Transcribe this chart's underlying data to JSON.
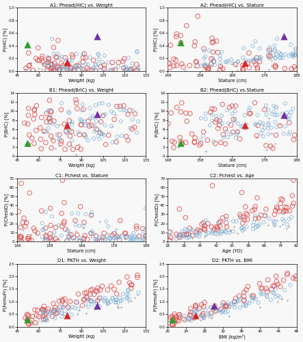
{
  "panels": [
    {
      "title": "A1: Phead(HIC) vs. Weight",
      "xlabel": "Weight (kg)",
      "ylabel": "P(HIC) [%]",
      "xlim": [
        45,
        135
      ],
      "ylim": [
        0,
        1
      ],
      "xticks": [
        45,
        60,
        75,
        90,
        105,
        120,
        135
      ],
      "yticks": [
        0,
        0.2,
        0.4,
        0.6,
        0.8,
        1
      ]
    },
    {
      "title": "A2: Phead(HIC) vs. Stature",
      "xlabel": "Stature (cm)",
      "ylabel": "P(HIC) [%]",
      "xlim": [
        148,
        188
      ],
      "ylim": [
        0,
        1
      ],
      "xticks": [
        148,
        158,
        168,
        178,
        188
      ],
      "yticks": [
        0,
        0.2,
        0.4,
        0.6,
        0.8,
        1
      ]
    },
    {
      "title": "B1: Phead(BrIC) vs. Weight",
      "xlabel": "Weight (kg)",
      "ylabel": "P(BrIC) [%]",
      "xlim": [
        45,
        135
      ],
      "ylim": [
        0,
        14
      ],
      "xticks": [
        45,
        60,
        75,
        90,
        105,
        120,
        135
      ],
      "yticks": [
        0,
        2,
        4,
        6,
        8,
        10,
        12,
        14
      ]
    },
    {
      "title": "B2: Phead(BrIC) vs.Stature",
      "xlabel": "Stature (cm)",
      "ylabel": "P(BrIC) [%]",
      "xlim": [
        148,
        188
      ],
      "ylim": [
        0,
        14
      ],
      "xticks": [
        148,
        158,
        168,
        178,
        188
      ],
      "yticks": [
        0,
        2,
        4,
        6,
        8,
        10,
        12,
        14
      ]
    },
    {
      "title": "C1: Pchest vs. Stature",
      "xlabel": "Stature (cm)",
      "ylabel": "P(ChestD) [%]",
      "xlim": [
        148,
        188
      ],
      "ylim": [
        0,
        70
      ],
      "xticks": [
        148,
        158,
        168,
        178,
        188
      ],
      "yticks": [
        0,
        10,
        20,
        30,
        40,
        50,
        60,
        70
      ]
    },
    {
      "title": "C2: Pchest vs. Age",
      "xlabel": "Age (YO)",
      "ylabel": "P(ChestD) [%]",
      "xlim": [
        18,
        82
      ],
      "ylim": [
        0,
        70
      ],
      "xticks": [
        18,
        26,
        34,
        42,
        50,
        58,
        66,
        74,
        82
      ],
      "yticks": [
        0,
        10,
        20,
        30,
        40,
        50,
        60,
        70
      ]
    },
    {
      "title": "D1: PKTH vs. Weight",
      "xlabel": "Weight (kg)",
      "ylabel": "P(FemuFr) [%]",
      "xlim": [
        45,
        135
      ],
      "ylim": [
        0,
        2.5
      ],
      "xticks": [
        45,
        60,
        75,
        90,
        105,
        120,
        135
      ],
      "yticks": [
        0,
        0.5,
        1,
        1.5,
        2,
        2.5
      ]
    },
    {
      "title": "D2: PKTH vs. BMI",
      "xlabel": "BMI (kg/m²)",
      "ylabel": "P(FemuFr) [%]",
      "xlim": [
        20,
        48
      ],
      "ylim": [
        0,
        2.5
      ],
      "xticks": [
        20,
        24,
        28,
        32,
        36,
        40,
        44,
        48
      ],
      "yticks": [
        0,
        0.5,
        1,
        1.5,
        2,
        2.5
      ]
    }
  ],
  "atd_points": {
    "0": {
      "sf": [
        52,
        0.42
      ],
      "mm": [
        80,
        0.14
      ],
      "lm": [
        101,
        0.55
      ]
    },
    "1": {
      "sf": [
        152,
        0.45
      ],
      "mm": [
        172,
        0.13
      ],
      "lm": [
        184,
        0.55
      ]
    },
    "2": {
      "sf": [
        52,
        3.0
      ],
      "mm": [
        80,
        6.8
      ],
      "lm": [
        101,
        9.3
      ]
    },
    "3": {
      "sf": [
        152,
        3.0
      ],
      "mm": [
        172,
        6.8
      ],
      "lm": [
        184,
        9.2
      ]
    },
    "4": null,
    "5": null,
    "6": {
      "sf": [
        52,
        0.28
      ],
      "mm": [
        80,
        0.45
      ],
      "lm": [
        101,
        0.83
      ]
    },
    "7": {
      "sf": [
        21,
        0.28
      ],
      "mm": [
        26,
        0.45
      ],
      "lm": [
        30,
        0.83
      ]
    }
  },
  "color_sf": "#2ca02c",
  "color_mm": "#d62728",
  "color_lm": "#7030a0",
  "color_red": "#e05050",
  "color_blue": "#7bafd4",
  "color_plus": "#888888",
  "bg": "#f8f8f8"
}
